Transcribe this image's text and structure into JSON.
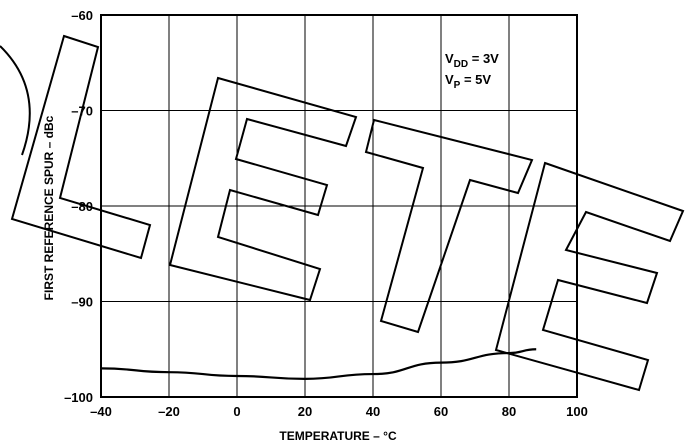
{
  "chart_data": {
    "type": "line",
    "xlabel": "TEMPERATURE – °C",
    "ylabel": "FIRST REFERENCE SPUR – dBc",
    "xlim": [
      -40,
      100
    ],
    "ylim": [
      -100,
      -60
    ],
    "x_ticks": [
      "–40",
      "–20",
      "0",
      "20",
      "40",
      "60",
      "80",
      "100"
    ],
    "y_ticks": [
      "–60",
      "–70",
      "–80",
      "–90",
      "–100"
    ],
    "grid": true,
    "annotations": [
      {
        "main": "V",
        "sub": "DD",
        "rest": " = 3V"
      },
      {
        "main": "V",
        "sub": "P",
        "rest": " = 5V"
      }
    ],
    "series": [
      {
        "x": [
          -40,
          -20,
          0,
          20,
          40,
          60,
          80,
          88
        ],
        "y": [
          -97.0,
          -97.4,
          -97.8,
          -98.1,
          -97.6,
          -96.4,
          -95.4,
          -95.0
        ]
      }
    ]
  },
  "watermark": {
    "text": "OBSOLETE",
    "color": "#000000"
  }
}
